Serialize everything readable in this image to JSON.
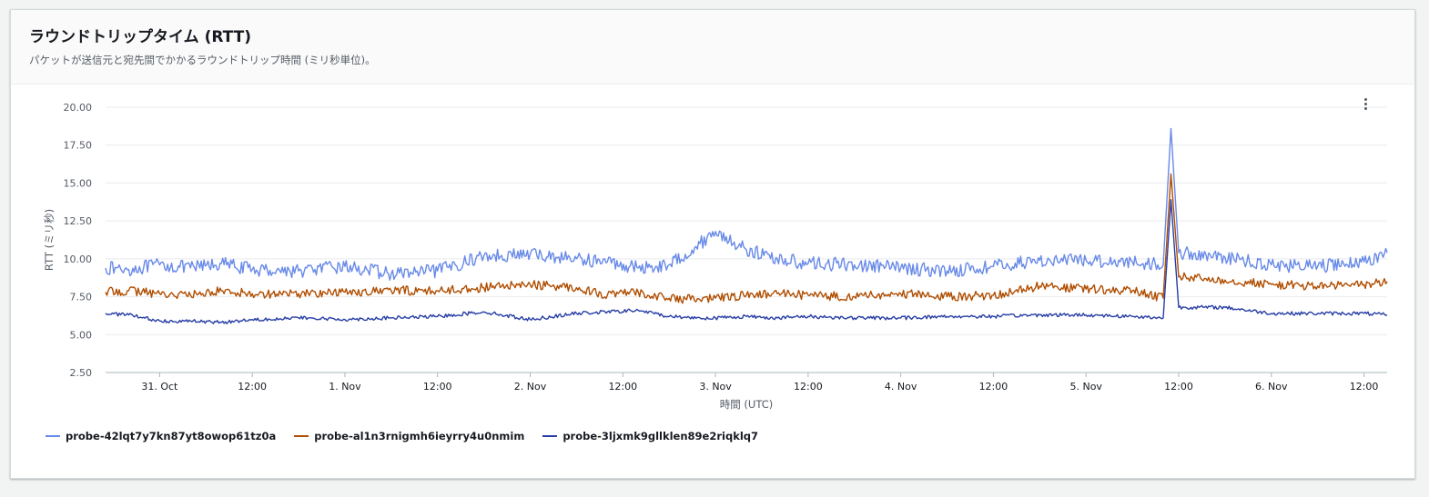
{
  "card": {
    "title": "ラウンドトリップタイム (RTT)",
    "subtitle": "パケットが送信元と宛先間でかかるラウンドトリップ時間 (ミリ秒単位)。"
  },
  "menu": {
    "icon": "more-vertical-icon"
  },
  "chart_data": {
    "type": "line",
    "title": "ラウンドトリップタイム (RTT)",
    "xlabel": "時間 (UTC)",
    "ylabel": "RTT (ミリ秒)",
    "ylim": [
      2.5,
      20.0
    ],
    "yticks": [
      "20.00",
      "17.50",
      "15.00",
      "12.50",
      "10.00",
      "7.50",
      "5.00",
      "2.50"
    ],
    "xlim": [
      "2024-10-30T17:00",
      "2024-11-06T15:00"
    ],
    "xticks": [
      {
        "t": "2024-10-31T00:00",
        "label": "31. Oct"
      },
      {
        "t": "2024-10-31T12:00",
        "label": "12:00"
      },
      {
        "t": "2024-11-01T00:00",
        "label": "1. Nov"
      },
      {
        "t": "2024-11-01T12:00",
        "label": "12:00"
      },
      {
        "t": "2024-11-02T00:00",
        "label": "2. Nov"
      },
      {
        "t": "2024-11-02T12:00",
        "label": "12:00"
      },
      {
        "t": "2024-11-03T00:00",
        "label": "3. Nov"
      },
      {
        "t": "2024-11-03T12:00",
        "label": "12:00"
      },
      {
        "t": "2024-11-04T00:00",
        "label": "4. Nov"
      },
      {
        "t": "2024-11-04T12:00",
        "label": "12:00"
      },
      {
        "t": "2024-11-05T00:00",
        "label": "5. Nov"
      },
      {
        "t": "2024-11-05T12:00",
        "label": "12:00"
      },
      {
        "t": "2024-11-06T00:00",
        "label": "6. Nov"
      },
      {
        "t": "2024-11-06T12:00",
        "label": "12:00"
      }
    ],
    "grid": true,
    "legend_position": "bottom-left",
    "series": [
      {
        "name": "probe-42lqt7y7kn87yt8owop61tz0a",
        "color": "#688ae8",
        "points": [
          [
            "2024-10-30T17:00",
            9.4
          ],
          [
            "2024-10-30T20:00",
            9.3
          ],
          [
            "2024-10-31T00:00",
            9.6
          ],
          [
            "2024-10-31T04:00",
            9.4
          ],
          [
            "2024-10-31T08:00",
            9.7
          ],
          [
            "2024-10-31T12:00",
            9.3
          ],
          [
            "2024-10-31T18:00",
            9.2
          ],
          [
            "2024-11-01T00:00",
            9.5
          ],
          [
            "2024-11-01T06:00",
            9.0
          ],
          [
            "2024-11-01T12:00",
            9.2
          ],
          [
            "2024-11-01T18:00",
            10.2
          ],
          [
            "2024-11-02T00:00",
            10.3
          ],
          [
            "2024-11-02T06:00",
            10.0
          ],
          [
            "2024-11-02T10:00",
            9.8
          ],
          [
            "2024-11-02T14:00",
            9.4
          ],
          [
            "2024-11-02T18:00",
            9.6
          ],
          [
            "2024-11-02T22:00",
            11.0
          ],
          [
            "2024-11-03T00:00",
            11.8
          ],
          [
            "2024-11-03T04:00",
            10.6
          ],
          [
            "2024-11-03T08:00",
            10.0
          ],
          [
            "2024-11-03T12:00",
            9.7
          ],
          [
            "2024-11-03T18:00",
            9.6
          ],
          [
            "2024-11-04T00:00",
            9.4
          ],
          [
            "2024-11-04T06:00",
            9.2
          ],
          [
            "2024-11-04T12:00",
            9.5
          ],
          [
            "2024-11-04T18:00",
            9.9
          ],
          [
            "2024-11-05T00:00",
            9.9
          ],
          [
            "2024-11-05T06:00",
            9.8
          ],
          [
            "2024-11-05T10:00",
            9.6
          ],
          [
            "2024-11-05T11:00",
            18.6
          ],
          [
            "2024-11-05T12:00",
            10.4
          ],
          [
            "2024-11-05T18:00",
            10.1
          ],
          [
            "2024-11-06T00:00",
            9.6
          ],
          [
            "2024-11-06T06:00",
            9.5
          ],
          [
            "2024-11-06T12:00",
            9.8
          ],
          [
            "2024-11-06T15:00",
            10.4
          ]
        ]
      },
      {
        "name": "probe-al1n3rnigmh6ieyrry4u0nmim",
        "color": "#b04d00",
        "points": [
          [
            "2024-10-30T17:00",
            7.8
          ],
          [
            "2024-10-30T20:00",
            7.9
          ],
          [
            "2024-10-31T00:00",
            7.7
          ],
          [
            "2024-10-31T04:00",
            7.6
          ],
          [
            "2024-10-31T08:00",
            7.9
          ],
          [
            "2024-10-31T12:00",
            7.7
          ],
          [
            "2024-10-31T18:00",
            7.7
          ],
          [
            "2024-11-01T00:00",
            7.8
          ],
          [
            "2024-11-01T06:00",
            7.9
          ],
          [
            "2024-11-01T12:00",
            7.9
          ],
          [
            "2024-11-01T18:00",
            8.1
          ],
          [
            "2024-11-02T00:00",
            8.3
          ],
          [
            "2024-11-02T06:00",
            8.1
          ],
          [
            "2024-11-02T10:00",
            7.6
          ],
          [
            "2024-11-02T14:00",
            7.8
          ],
          [
            "2024-11-02T18:00",
            7.4
          ],
          [
            "2024-11-02T22:00",
            7.3
          ],
          [
            "2024-11-03T00:00",
            7.4
          ],
          [
            "2024-11-03T04:00",
            7.6
          ],
          [
            "2024-11-03T08:00",
            7.7
          ],
          [
            "2024-11-03T12:00",
            7.6
          ],
          [
            "2024-11-03T18:00",
            7.5
          ],
          [
            "2024-11-04T00:00",
            7.7
          ],
          [
            "2024-11-04T06:00",
            7.5
          ],
          [
            "2024-11-04T12:00",
            7.6
          ],
          [
            "2024-11-04T18:00",
            8.2
          ],
          [
            "2024-11-05T00:00",
            8.0
          ],
          [
            "2024-11-05T06:00",
            7.9
          ],
          [
            "2024-11-05T10:00",
            7.4
          ],
          [
            "2024-11-05T11:00",
            15.6
          ],
          [
            "2024-11-05T12:00",
            8.8
          ],
          [
            "2024-11-05T18:00",
            8.6
          ],
          [
            "2024-11-06T00:00",
            8.3
          ],
          [
            "2024-11-06T06:00",
            8.2
          ],
          [
            "2024-11-06T12:00",
            8.3
          ],
          [
            "2024-11-06T15:00",
            8.5
          ]
        ]
      },
      {
        "name": "probe-3ljxmk9gllklen89e2riqklq7",
        "color": "#273ea5",
        "points": [
          [
            "2024-10-30T17:00",
            6.4
          ],
          [
            "2024-10-30T20:00",
            6.3
          ],
          [
            "2024-10-31T00:00",
            5.9
          ],
          [
            "2024-10-31T04:00",
            5.9
          ],
          [
            "2024-10-31T08:00",
            5.8
          ],
          [
            "2024-10-31T12:00",
            6.0
          ],
          [
            "2024-10-31T18:00",
            6.1
          ],
          [
            "2024-11-01T00:00",
            6.0
          ],
          [
            "2024-11-01T06:00",
            6.1
          ],
          [
            "2024-11-01T12:00",
            6.2
          ],
          [
            "2024-11-01T18:00",
            6.5
          ],
          [
            "2024-11-02T00:00",
            6.0
          ],
          [
            "2024-11-02T06:00",
            6.4
          ],
          [
            "2024-11-02T10:00",
            6.5
          ],
          [
            "2024-11-02T14:00",
            6.6
          ],
          [
            "2024-11-02T18:00",
            6.2
          ],
          [
            "2024-11-02T22:00",
            6.1
          ],
          [
            "2024-11-03T00:00",
            6.1
          ],
          [
            "2024-11-03T04:00",
            6.2
          ],
          [
            "2024-11-03T08:00",
            6.1
          ],
          [
            "2024-11-03T12:00",
            6.2
          ],
          [
            "2024-11-03T18:00",
            6.1
          ],
          [
            "2024-11-04T00:00",
            6.1
          ],
          [
            "2024-11-04T06:00",
            6.2
          ],
          [
            "2024-11-04T12:00",
            6.2
          ],
          [
            "2024-11-04T18:00",
            6.3
          ],
          [
            "2024-11-05T00:00",
            6.3
          ],
          [
            "2024-11-05T06:00",
            6.2
          ],
          [
            "2024-11-05T10:00",
            6.1
          ],
          [
            "2024-11-05T11:00",
            13.9
          ],
          [
            "2024-11-05T12:00",
            6.8
          ],
          [
            "2024-11-05T18:00",
            6.8
          ],
          [
            "2024-11-06T00:00",
            6.4
          ],
          [
            "2024-11-06T06:00",
            6.4
          ],
          [
            "2024-11-06T12:00",
            6.4
          ],
          [
            "2024-11-06T15:00",
            6.3
          ]
        ]
      }
    ]
  }
}
